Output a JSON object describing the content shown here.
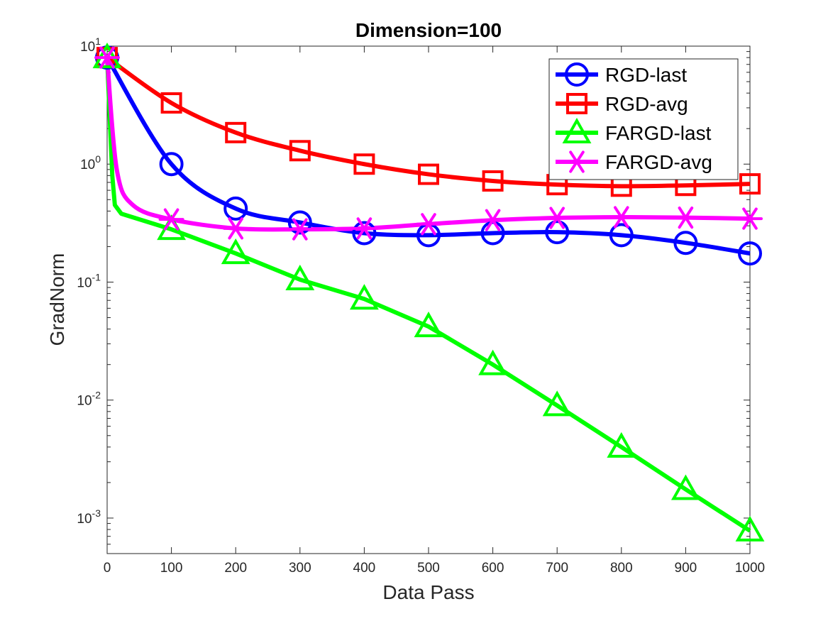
{
  "chart_data": {
    "type": "line",
    "title": "Dimension=100",
    "xlabel": "Data Pass",
    "ylabel": "GradNorm",
    "xlim": [
      0,
      1000
    ],
    "ylim": [
      0.0005,
      10
    ],
    "yscale": "log",
    "grid": false,
    "legend_position": "top-right",
    "x_ticks": [
      "0",
      "100",
      "200",
      "300",
      "400",
      "500",
      "600",
      "700",
      "800",
      "900",
      "1000"
    ],
    "y_ticks": [
      {
        "value": 0.001,
        "base": "10",
        "exp": "-3"
      },
      {
        "value": 0.01,
        "base": "10",
        "exp": "-2"
      },
      {
        "value": 0.1,
        "base": "10",
        "exp": "-1"
      },
      {
        "value": 1,
        "base": "10",
        "exp": "0"
      },
      {
        "value": 10,
        "base": "10",
        "exp": "1"
      }
    ],
    "series": [
      {
        "name": "RGD-last",
        "color": "#0000ff",
        "marker": "circle",
        "x": [
          0,
          100,
          200,
          300,
          400,
          500,
          600,
          700,
          800,
          900,
          1000
        ],
        "y": [
          8.0,
          1.0,
          0.42,
          0.32,
          0.26,
          0.25,
          0.26,
          0.265,
          0.25,
          0.215,
          0.175
        ]
      },
      {
        "name": "RGD-avg",
        "color": "#ff0000",
        "marker": "square",
        "x": [
          0,
          100,
          200,
          300,
          400,
          500,
          600,
          700,
          800,
          900,
          1000
        ],
        "y": [
          8.0,
          3.3,
          1.85,
          1.3,
          1.0,
          0.82,
          0.72,
          0.67,
          0.65,
          0.66,
          0.68
        ]
      },
      {
        "name": "FARGD-last",
        "color": "#00ff00",
        "marker": "triangle",
        "x": [
          0,
          100,
          200,
          300,
          400,
          500,
          600,
          700,
          800,
          900,
          1000
        ],
        "y": [
          8.0,
          0.28,
          0.175,
          0.105,
          0.072,
          0.042,
          0.02,
          0.009,
          0.004,
          0.00175,
          0.00078
        ]
      },
      {
        "name": "FARGD-avg",
        "color": "#ff00ff",
        "marker": "asterisk",
        "x": [
          0,
          100,
          200,
          300,
          400,
          500,
          600,
          700,
          800,
          900,
          1000
        ],
        "y": [
          8.0,
          0.34,
          0.285,
          0.28,
          0.285,
          0.31,
          0.335,
          0.35,
          0.355,
          0.352,
          0.345
        ]
      }
    ]
  }
}
